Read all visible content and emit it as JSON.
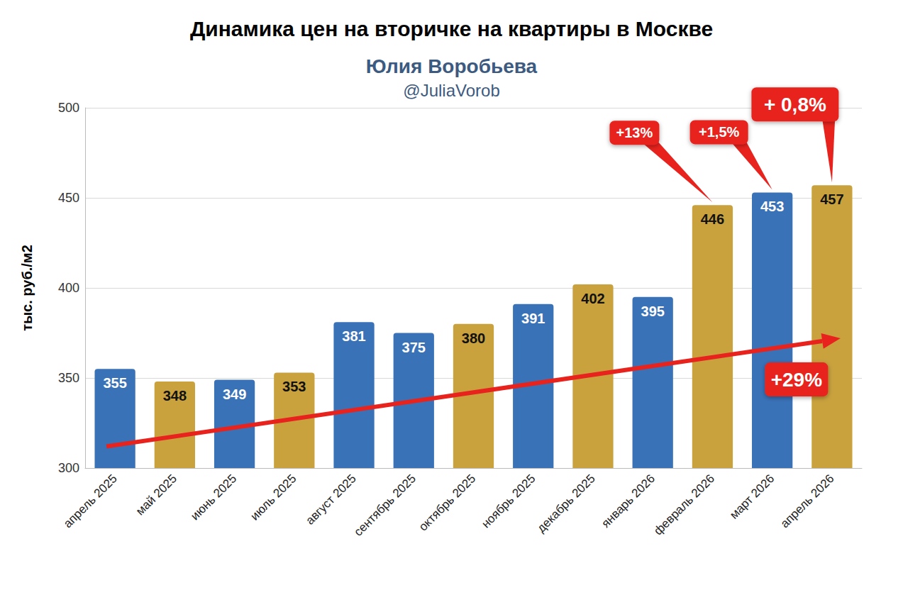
{
  "chart_data": {
    "type": "bar",
    "title": "Динамика цен на вторичке на квартиры в Москве",
    "subtitle": [
      "Юлия Воробьева",
      "@JuliaVorob"
    ],
    "y_label": "тыс. руб./м2",
    "categories": [
      "апрель 2025",
      "май 2025",
      "июнь 2025",
      "июль 2025",
      "август 2025",
      "сентябрь 2025",
      "октябрь 2025",
      "ноябрь 2025",
      "декабрь 2025",
      "январь 2026",
      "февраль 2026",
      "март 2026",
      "апрель 2026"
    ],
    "values": [
      355,
      348,
      349,
      353,
      381,
      375,
      380,
      391,
      402,
      395,
      446,
      453,
      457
    ],
    "colors": [
      "#3a72b8",
      "#c9a23e",
      "#3a72b8",
      "#c9a23e",
      "#3a72b8",
      "#3a72b8",
      "#c9a23e",
      "#3a72b8",
      "#c9a23e",
      "#3a72b8",
      "#c9a23e",
      "#3a72b8",
      "#c9a23e"
    ],
    "ylim": [
      300,
      500
    ],
    "yticks": [
      300,
      350,
      400,
      450,
      500
    ],
    "grid": true,
    "data_labels": true,
    "annotations": [
      {
        "text": "+13%",
        "category": "февраль 2026"
      },
      {
        "text": "+1,5%",
        "category": "март 2026"
      },
      {
        "text": "+ 0,8%",
        "category": "апрель 2026"
      },
      {
        "text": "+29%",
        "from": "апрель 2025",
        "to": "апрель 2026"
      }
    ]
  }
}
